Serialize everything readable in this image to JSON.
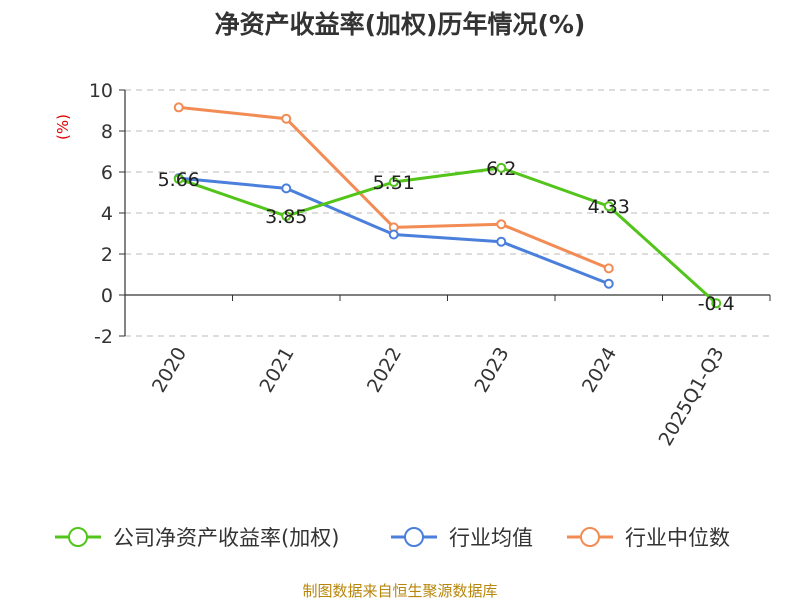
{
  "chart_data": {
    "type": "line",
    "title": "净资产收益率(加权)历年情况(%)",
    "ylabel": "(%)",
    "categories": [
      "2020",
      "2021",
      "2022",
      "2023",
      "2024",
      "2025Q1-Q3"
    ],
    "y_ticks": [
      10,
      8,
      6,
      4,
      2,
      0,
      -2
    ],
    "ylim": [
      -2,
      10
    ],
    "grid": true,
    "legend_position": "bottom",
    "series": [
      {
        "name": "公司净资产收益率(加权)",
        "color": "#52c41a",
        "values": [
          5.66,
          3.85,
          5.51,
          6.2,
          4.33,
          -0.4
        ],
        "labels": [
          "5.66",
          "3.85",
          "5.51",
          "6.2",
          "4.33",
          "-0.4"
        ]
      },
      {
        "name": "行业均值",
        "color": "#4a7fdb",
        "values": [
          5.7,
          5.2,
          2.95,
          2.6,
          0.55,
          null
        ]
      },
      {
        "name": "行业中位数",
        "color": "#f28b54",
        "values": [
          9.15,
          8.6,
          3.3,
          3.45,
          1.3,
          null
        ]
      }
    ]
  },
  "source_text": "制图数据来自恒生聚源数据库"
}
